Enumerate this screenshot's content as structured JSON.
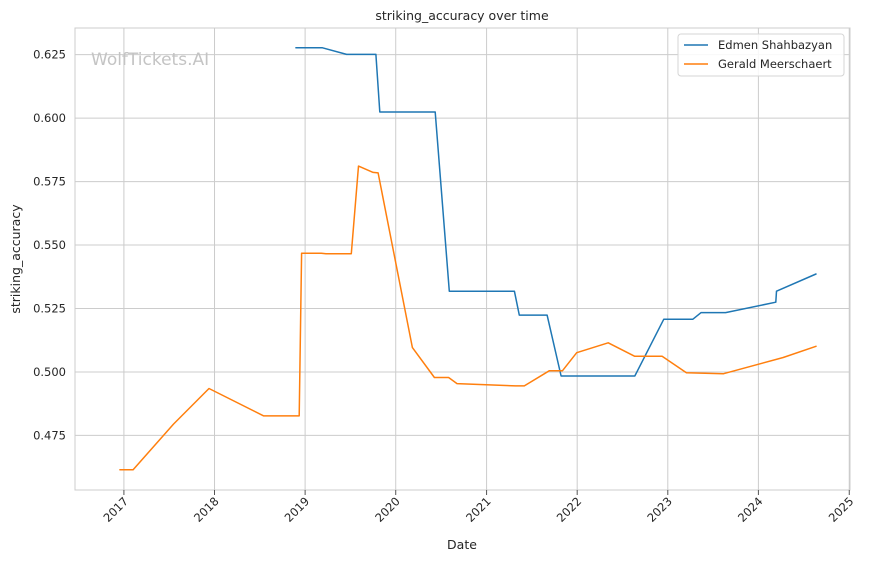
{
  "chart_data": {
    "type": "line",
    "title": "striking_accuracy over time",
    "xlabel": "Date",
    "ylabel": "striking_accuracy",
    "watermark": "WolfTickets.AI",
    "x_range": [
      "2016-06-18",
      "2025-01-04"
    ],
    "ylim": [
      0.4535,
      0.6355
    ],
    "x_ticks": [
      {
        "date": "2017-01-01",
        "label": "2017"
      },
      {
        "date": "2018-01-01",
        "label": "2018"
      },
      {
        "date": "2019-01-01",
        "label": "2019"
      },
      {
        "date": "2020-01-01",
        "label": "2020"
      },
      {
        "date": "2021-01-01",
        "label": "2021"
      },
      {
        "date": "2022-01-01",
        "label": "2022"
      },
      {
        "date": "2023-01-01",
        "label": "2023"
      },
      {
        "date": "2024-01-01",
        "label": "2024"
      },
      {
        "date": "2025-01-01",
        "label": "2025"
      }
    ],
    "y_ticks": [
      {
        "value": 0.475,
        "label": "0.475"
      },
      {
        "value": 0.5,
        "label": "0.500"
      },
      {
        "value": 0.525,
        "label": "0.525"
      },
      {
        "value": 0.55,
        "label": "0.550"
      },
      {
        "value": 0.575,
        "label": "0.575"
      },
      {
        "value": 0.6,
        "label": "0.600"
      },
      {
        "value": 0.625,
        "label": "0.625"
      }
    ],
    "grid": true,
    "legend_position": "top-right",
    "series": [
      {
        "name": "Edmen Shahbazyan",
        "color": "#1f77b4",
        "points": [
          [
            "2018-11-25",
            0.6277
          ],
          [
            "2019-03-12",
            0.6277
          ],
          [
            "2019-06-17",
            0.6251
          ],
          [
            "2019-10-13",
            0.6251
          ],
          [
            "2019-10-29",
            0.6024
          ],
          [
            "2020-06-08",
            0.6024
          ],
          [
            "2020-08-04",
            0.5318
          ],
          [
            "2021-04-23",
            0.5318
          ],
          [
            "2021-05-13",
            0.5224
          ],
          [
            "2021-09-02",
            0.5224
          ],
          [
            "2021-10-28",
            0.4984
          ],
          [
            "2022-08-21",
            0.4984
          ],
          [
            "2022-12-16",
            0.5208
          ],
          [
            "2023-04-12",
            0.5208
          ],
          [
            "2023-05-15",
            0.5234
          ],
          [
            "2023-08-22",
            0.5234
          ],
          [
            "2024-03-11",
            0.5275
          ],
          [
            "2024-03-14",
            0.5318
          ],
          [
            "2024-08-20",
            0.5386
          ]
        ]
      },
      {
        "name": "Gerald Meerschaert",
        "color": "#ff7f0e",
        "points": [
          [
            "2016-12-16",
            0.4615
          ],
          [
            "2017-02-07",
            0.4615
          ],
          [
            "2017-07-20",
            0.4795
          ],
          [
            "2017-12-10",
            0.4935
          ],
          [
            "2018-07-18",
            0.4827
          ],
          [
            "2018-12-08",
            0.4827
          ],
          [
            "2018-12-18",
            0.5468
          ],
          [
            "2019-03-07",
            0.5468
          ],
          [
            "2019-03-26",
            0.5466
          ],
          [
            "2019-07-06",
            0.5466
          ],
          [
            "2019-08-04",
            0.5811
          ],
          [
            "2019-10-02",
            0.5786
          ],
          [
            "2019-10-22",
            0.5784
          ],
          [
            "2020-03-08",
            0.5096
          ],
          [
            "2020-06-05",
            0.4978
          ],
          [
            "2020-08-01",
            0.4978
          ],
          [
            "2020-09-04",
            0.4954
          ],
          [
            "2021-04-28",
            0.4945
          ],
          [
            "2021-06-02",
            0.4945
          ],
          [
            "2021-09-11",
            0.5005
          ],
          [
            "2021-11-03",
            0.5005
          ],
          [
            "2021-12-30",
            0.5076
          ],
          [
            "2022-05-06",
            0.5115
          ],
          [
            "2022-08-20",
            0.5062
          ],
          [
            "2022-12-09",
            0.5062
          ],
          [
            "2023-03-17",
            0.4997
          ],
          [
            "2023-08-14",
            0.4993
          ],
          [
            "2024-04-10",
            0.5057
          ],
          [
            "2024-08-20",
            0.5101
          ]
        ]
      }
    ]
  }
}
